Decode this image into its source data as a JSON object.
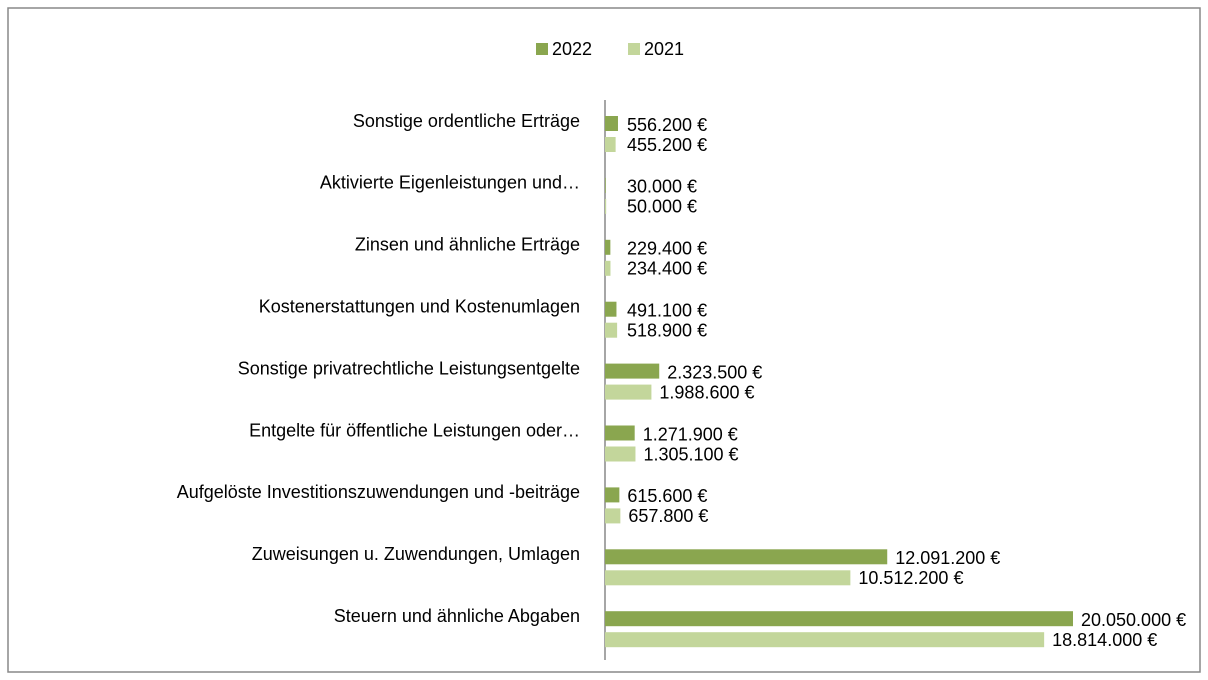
{
  "chart_data": {
    "type": "hbar",
    "categories": [
      "Sonstige ordentliche Erträge",
      "Aktivierte Eigenleistungen und…",
      "Zinsen und ähnliche Erträge",
      "Kostenerstattungen und Kostenumlagen",
      "Sonstige privatrechtliche Leistungsentgelte",
      "Entgelte für öffentliche Leistungen oder…",
      "Aufgelöste Investitionszuwendungen und -beiträge",
      "Zuweisungen u. Zuwendungen, Umlagen",
      "Steuern und ähnliche Abgaben"
    ],
    "series": [
      {
        "name": "2022",
        "color": "#8aa64f",
        "values": [
          556200,
          30000,
          229400,
          491100,
          2323500,
          1271900,
          615600,
          12091200,
          20050000
        ],
        "value_labels": [
          "556.200 €",
          "30.000 €",
          "229.400 €",
          "491.100 €",
          "2.323.500 €",
          "1.271.900 €",
          "615.600 €",
          "12.091.200 €",
          "20.050.000 €"
        ]
      },
      {
        "name": "2021",
        "color": "#c3d69b",
        "values": [
          455200,
          50000,
          234400,
          518900,
          1988600,
          1305100,
          657800,
          10512200,
          18814000
        ],
        "value_labels": [
          "455.200 €",
          "50.000 €",
          "234.400 €",
          "518.900 €",
          "1.988.600 €",
          "1.305.100 €",
          "657.800 €",
          "10.512.200 €",
          "18.814.000 €"
        ]
      }
    ],
    "legend": "top"
  }
}
